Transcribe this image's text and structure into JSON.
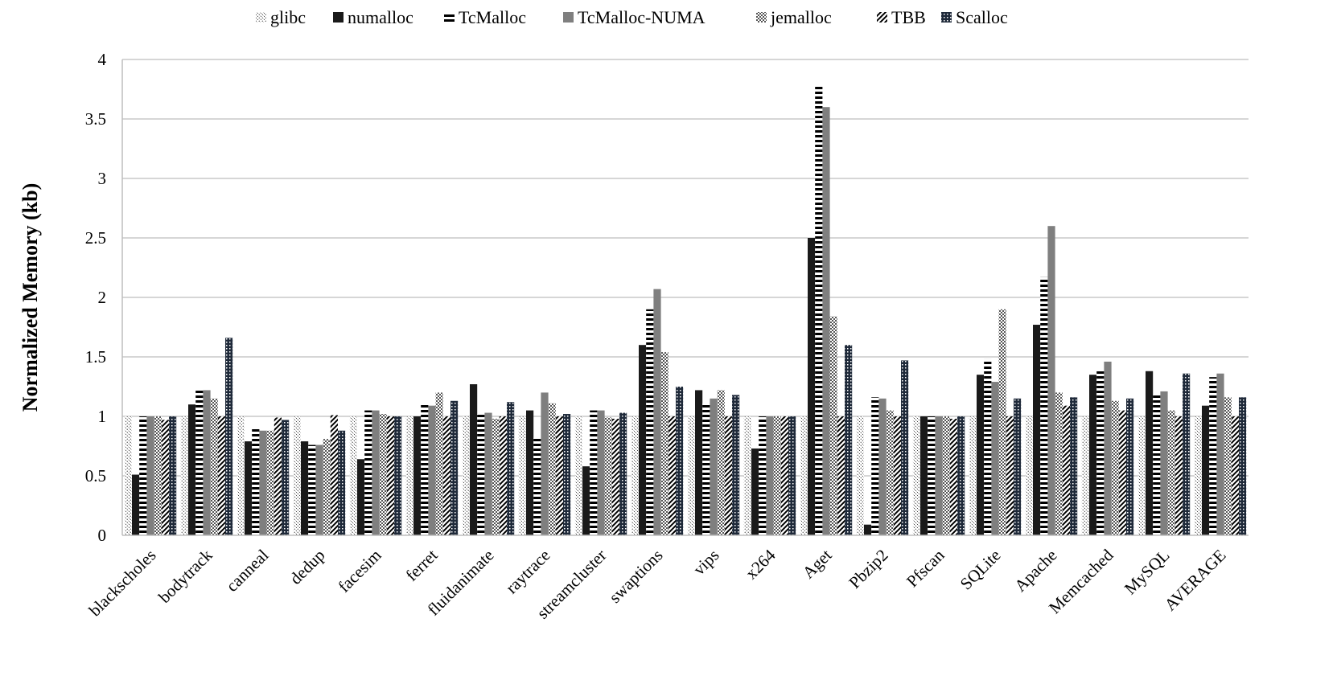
{
  "chart_data": {
    "type": "bar",
    "title": "",
    "xlabel": "",
    "ylabel": "Normalized Memory (kb)",
    "ylim": [
      0,
      4
    ],
    "yticks": [
      "0",
      "0.5",
      "1",
      "1.5",
      "2",
      "2.5",
      "3",
      "3.5",
      "4"
    ],
    "grid": true,
    "legend_position": "top",
    "categories": [
      "blackscholes",
      "bodytrack",
      "canneal",
      "dedup",
      "facesim",
      "ferret",
      "fluidanimate",
      "raytrace",
      "streamcluster",
      "swaptions",
      "vips",
      "x264",
      "Aget",
      "Pbzip2",
      "Pfscan",
      "SQLite",
      "Apache",
      "Memcached",
      "MySQL",
      "AVERAGE"
    ],
    "series": [
      {
        "name": "glibc",
        "pattern": "dots",
        "values": [
          1,
          1,
          1,
          1,
          1,
          1,
          1,
          1,
          1,
          1,
          1,
          1,
          1,
          1,
          1,
          1,
          1,
          1,
          1,
          1
        ]
      },
      {
        "name": "numalloc",
        "pattern": "solid-black",
        "values": [
          0.51,
          1.1,
          0.79,
          0.79,
          0.64,
          1.0,
          1.27,
          1.05,
          0.58,
          1.6,
          1.22,
          0.73,
          2.5,
          0.09,
          1.0,
          1.35,
          1.77,
          1.35,
          1.38,
          1.09
        ]
      },
      {
        "name": "TcMalloc",
        "pattern": "hstripes",
        "values": [
          1.0,
          1.22,
          0.9,
          0.76,
          1.05,
          1.1,
          1.02,
          0.82,
          1.05,
          1.9,
          1.11,
          1.0,
          3.78,
          1.16,
          1.0,
          1.48,
          2.17,
          1.38,
          1.18,
          1.33
        ]
      },
      {
        "name": "TcMalloc-NUMA",
        "pattern": "solid-gray",
        "values": [
          1.0,
          1.22,
          0.88,
          0.76,
          1.05,
          1.09,
          1.03,
          1.2,
          1.05,
          2.07,
          1.15,
          1.0,
          3.6,
          1.15,
          1.0,
          1.29,
          2.6,
          1.46,
          1.21,
          1.36
        ]
      },
      {
        "name": "jemalloc",
        "pattern": "checker",
        "values": [
          1.0,
          1.15,
          0.88,
          0.81,
          1.02,
          1.2,
          0.98,
          1.11,
          0.99,
          1.54,
          1.22,
          1.0,
          1.84,
          1.05,
          1.0,
          1.9,
          1.2,
          1.13,
          1.05,
          1.16
        ]
      },
      {
        "name": "TBB",
        "pattern": "diagonal",
        "values": [
          0.97,
          1.0,
          0.99,
          1.01,
          1.0,
          1.0,
          1.0,
          1.0,
          0.98,
          1.0,
          1.0,
          1.0,
          1.0,
          1.0,
          0.98,
          1.0,
          1.09,
          1.05,
          1.0,
          1.0
        ]
      },
      {
        "name": "Scalloc",
        "pattern": "grid",
        "values": [
          1.0,
          1.66,
          0.97,
          0.88,
          1.0,
          1.13,
          1.12,
          1.02,
          1.03,
          1.25,
          1.18,
          1.0,
          1.6,
          1.47,
          1.0,
          1.15,
          1.16,
          1.15,
          1.36,
          1.16
        ]
      }
    ]
  }
}
